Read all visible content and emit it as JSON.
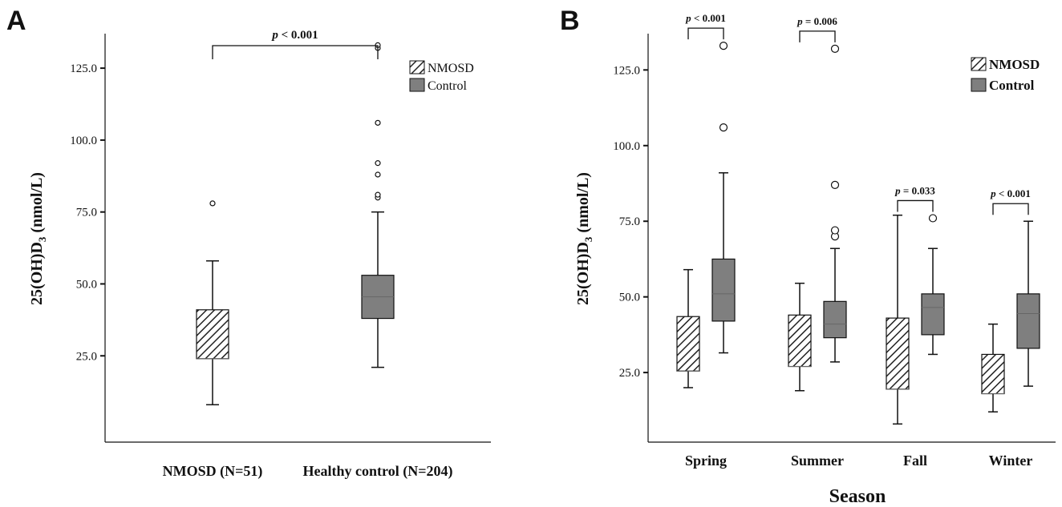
{
  "chart_data": [
    {
      "panel": "A",
      "type": "box",
      "ylabel_main": "25(OH)D",
      "ylabel_sub": "3",
      "ylabel_rest": " (nmol/L)",
      "ylim": [
        -5,
        137
      ],
      "yticks": [
        25.0,
        50.0,
        75.0,
        100.0,
        125.0
      ],
      "ytick_labels": [
        "25.0",
        "50.0",
        "75.0",
        "100.0",
        "125.0"
      ],
      "categories": [
        "NMOSD (N=51)",
        "Healthy control (N=204)"
      ],
      "series": [
        {
          "name": "NMOSD",
          "pattern": "hatched",
          "boxes": [
            {
              "min": 8,
              "q1": 24,
              "median": 24,
              "q3": 41,
              "max": 58,
              "outliers": [
                78
              ]
            }
          ]
        },
        {
          "name": "Control",
          "pattern": "solid",
          "boxes": [
            {
              "min": 21,
              "q1": 38,
              "median": 45.5,
              "q3": 53,
              "max": 75,
              "outliers": [
                80,
                81,
                88,
                92,
                106,
                132,
                133
              ]
            }
          ]
        }
      ],
      "significance": [
        {
          "from": 0,
          "to": 1,
          "p_prefix": "p",
          "p_text": " < 0.001"
        }
      ],
      "legend": [
        "NMOSD",
        "Control"
      ],
      "legend_position": "top-right",
      "grid": false
    },
    {
      "panel": "B",
      "type": "box",
      "ylabel_main": "25(OH)D",
      "ylabel_sub": "3",
      "ylabel_rest": " (nmol/L)",
      "xlabel": "Season",
      "ylim": [
        2,
        137
      ],
      "yticks": [
        25.0,
        50.0,
        75.0,
        100.0,
        125.0
      ],
      "ytick_labels": [
        "25.0",
        "50.0",
        "75.0",
        "100.0",
        "125.0"
      ],
      "categories": [
        "Spring",
        "Summer",
        "Fall",
        "Winter"
      ],
      "series": [
        {
          "name": "NMOSD",
          "pattern": "hatched",
          "boxes": [
            {
              "min": 20,
              "q1": 25.5,
              "median": 25.5,
              "q3": 43.5,
              "max": 59,
              "outliers": []
            },
            {
              "min": 19,
              "q1": 27,
              "median": 27,
              "q3": 44,
              "max": 54.5,
              "outliers": []
            },
            {
              "min": 8,
              "q1": 19.5,
              "median": 19.5,
              "q3": 43,
              "max": 77,
              "outliers": []
            },
            {
              "min": 12,
              "q1": 18,
              "median": 18,
              "q3": 31,
              "max": 41,
              "outliers": []
            }
          ]
        },
        {
          "name": "Control",
          "pattern": "solid",
          "boxes": [
            {
              "min": 31.5,
              "q1": 42,
              "median": 51,
              "q3": 62.5,
              "max": 91,
              "outliers": [
                106,
                133
              ]
            },
            {
              "min": 28.5,
              "q1": 36.5,
              "median": 41,
              "q3": 48.5,
              "max": 66,
              "outliers": [
                70,
                72,
                87,
                132
              ]
            },
            {
              "min": 31,
              "q1": 37.5,
              "median": 46.5,
              "q3": 51,
              "max": 66,
              "outliers": [
                76
              ]
            },
            {
              "min": 20.5,
              "q1": 33,
              "median": 44.5,
              "q3": 51,
              "max": 75,
              "outliers": []
            }
          ]
        }
      ],
      "significance": [
        {
          "category": 0,
          "p_prefix": "p",
          "p_text": " < 0.001"
        },
        {
          "category": 1,
          "p_prefix": "p",
          "p_text": " = 0.006"
        },
        {
          "category": 2,
          "p_prefix": "p",
          "p_text": " = 0.033"
        },
        {
          "category": 3,
          "p_prefix": "p",
          "p_text": " < 0.001"
        }
      ],
      "legend": [
        "NMOSD",
        "Control"
      ],
      "legend_position": "top-right",
      "grid": false
    }
  ],
  "colors": {
    "control_fill": "#7f7f7f",
    "hatch_line": "#222222",
    "axis": "#111111"
  },
  "panel_labels": [
    "A",
    "B"
  ]
}
